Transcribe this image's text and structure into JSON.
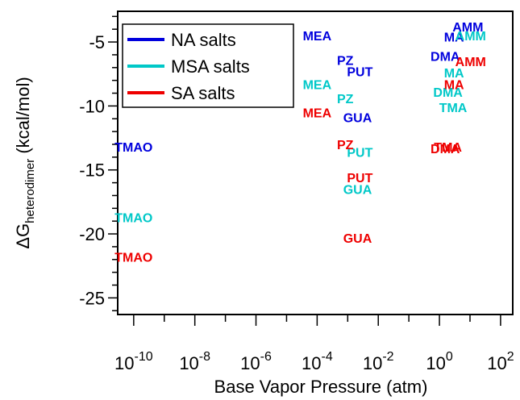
{
  "chart_data": {
    "type": "scatter",
    "xlabel": "Base Vapor Pressure (atm)",
    "ylabel_main": "ΔG",
    "ylabel_sub": "heterodimer",
    "ylabel_unit": " (kcal/mol)",
    "x_scale": "log",
    "xlim": [
      3e-11,
      250
    ],
    "ylim": [
      -26.3,
      -2.6
    ],
    "x_ticks": [
      {
        "value": 1e-10,
        "base": "10",
        "exp": "-10"
      },
      {
        "value": 1e-08,
        "base": "10",
        "exp": "-8"
      },
      {
        "value": 1e-06,
        "base": "10",
        "exp": "-6"
      },
      {
        "value": 0.0001,
        "base": "10",
        "exp": "-4"
      },
      {
        "value": 0.01,
        "base": "10",
        "exp": "-2"
      },
      {
        "value": 1,
        "base": "10",
        "exp": "0"
      },
      {
        "value": 100,
        "base": "10",
        "exp": "2"
      }
    ],
    "y_ticks": [
      {
        "value": -5,
        "label": "-5"
      },
      {
        "value": -10,
        "label": "-10"
      },
      {
        "value": -15,
        "label": "-15"
      },
      {
        "value": -20,
        "label": "-20"
      },
      {
        "value": -25,
        "label": "-25"
      }
    ],
    "legend_position": "top-left",
    "series": [
      {
        "name": "NA salts",
        "color": "#0000dd",
        "points": [
          {
            "label": "TMAO",
            "x": 1e-10,
            "y": -13.2
          },
          {
            "label": "MEA",
            "x": 0.0001,
            "y": -4.5
          },
          {
            "label": "PZ",
            "x": 0.00083,
            "y": -6.4
          },
          {
            "label": "PUT",
            "x": 0.0025,
            "y": -7.3
          },
          {
            "label": "GUA",
            "x": 0.0021,
            "y": -10.9
          },
          {
            "label": "AMM",
            "x": 8.5,
            "y": -3.8
          },
          {
            "label": "MA",
            "x": 3.0,
            "y": -4.6
          },
          {
            "label": "DMA",
            "x": 1.55,
            "y": -6.1
          }
        ]
      },
      {
        "name": "MSA salts",
        "color": "#00c8c8",
        "points": [
          {
            "label": "TMAO",
            "x": 1e-10,
            "y": -18.7
          },
          {
            "label": "MEA",
            "x": 0.0001,
            "y": -8.3
          },
          {
            "label": "PZ",
            "x": 0.00083,
            "y": -9.4
          },
          {
            "label": "PUT",
            "x": 0.0025,
            "y": -13.6
          },
          {
            "label": "GUA",
            "x": 0.0021,
            "y": -16.5
          },
          {
            "label": "AMM",
            "x": 10.5,
            "y": -4.5
          },
          {
            "label": "MA",
            "x": 3.0,
            "y": -7.4
          },
          {
            "label": "DMA",
            "x": 1.9,
            "y": -8.9
          },
          {
            "label": "TMA",
            "x": 2.8,
            "y": -10.1
          }
        ]
      },
      {
        "name": "SA salts",
        "color": "#ee0000",
        "points": [
          {
            "label": "TMAO",
            "x": 1e-10,
            "y": -21.8
          },
          {
            "label": "MEA",
            "x": 0.0001,
            "y": -10.5
          },
          {
            "label": "PZ",
            "x": 0.00083,
            "y": -13.0
          },
          {
            "label": "PUT",
            "x": 0.0025,
            "y": -15.6
          },
          {
            "label": "GUA",
            "x": 0.0021,
            "y": -20.3
          },
          {
            "label": "AMM",
            "x": 10.5,
            "y": -6.5
          },
          {
            "label": "MA",
            "x": 3.0,
            "y": -8.3
          },
          {
            "label": "DMA",
            "x": 1.55,
            "y": -13.3
          },
          {
            "label": "TMA",
            "x": 1.9,
            "y": -13.2
          }
        ]
      }
    ]
  }
}
